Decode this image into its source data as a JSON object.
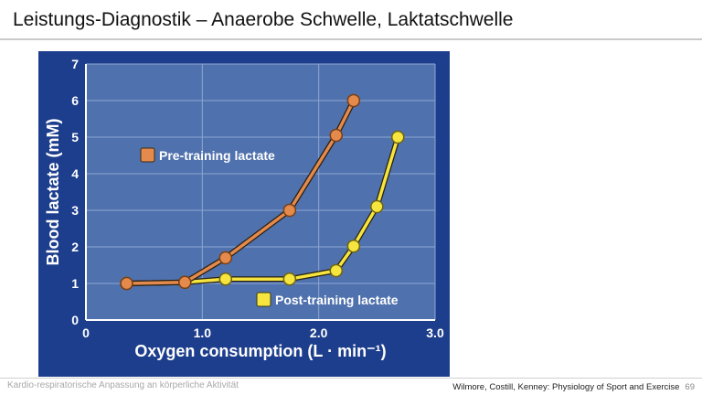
{
  "slide": {
    "title": "Leistungs-Diagnostik – Anaerobe Schwelle, Laktatschwelle"
  },
  "footer": {
    "left": "Kardio-respiratorische Anpassung an körperliche Aktivität",
    "source": "Wilmore, Costill, Kenney: Physiology of Sport and Exercise",
    "page": "69"
  },
  "colors": {
    "panel": "#1d3e8c",
    "plot": "#4f71ad",
    "grid": "#8ea6d2",
    "pre": "#e48a4d",
    "post": "#f6e53e"
  },
  "chart_data": {
    "type": "line",
    "title": "",
    "xlabel": "Oxygen consumption (L · min⁻¹)",
    "ylabel": "Blood lactate (mM)",
    "xlim": [
      0,
      3.0
    ],
    "ylim": [
      0,
      7
    ],
    "x_ticks": [
      "0",
      "1.0",
      "2.0",
      "3.0"
    ],
    "y_ticks": [
      "0",
      "1",
      "2",
      "3",
      "4",
      "5",
      "6",
      "7"
    ],
    "grid": true,
    "legend_placement": "in-plot labels",
    "series": [
      {
        "name": "Pre-training lactate",
        "color": "#e48a4d",
        "points": [
          [
            0.35,
            1.0
          ],
          [
            0.85,
            1.03
          ],
          [
            1.2,
            1.7
          ],
          [
            1.75,
            3.0
          ],
          [
            2.15,
            5.05
          ],
          [
            2.3,
            6.0
          ]
        ]
      },
      {
        "name": "Post-training lactate",
        "color": "#f6e53e",
        "points": [
          [
            0.35,
            1.0
          ],
          [
            0.85,
            1.03
          ],
          [
            1.2,
            1.12
          ],
          [
            1.75,
            1.12
          ],
          [
            2.15,
            1.35
          ],
          [
            2.3,
            2.02
          ],
          [
            2.5,
            3.1
          ],
          [
            2.68,
            5.0
          ]
        ]
      }
    ]
  }
}
